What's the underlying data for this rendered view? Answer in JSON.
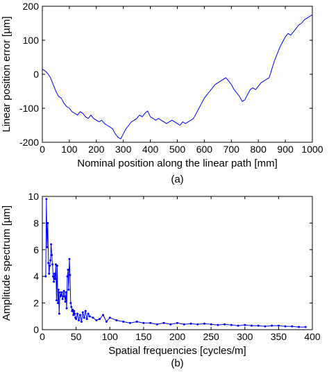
{
  "chart_data": [
    {
      "type": "line",
      "xlabel": "Nominal position along the linear path [mm]",
      "ylabel": "Linear position error [µm]",
      "caption": "(a)",
      "xlim": [
        0,
        1000
      ],
      "ylim": [
        -200,
        200
      ],
      "xticks": [
        "0",
        "100",
        "200",
        "300",
        "400",
        "500",
        "600",
        "700",
        "800",
        "900",
        "1000"
      ],
      "yticks": [
        "-200",
        "-100",
        "0",
        "100",
        "200"
      ],
      "grid": false,
      "series": [
        {
          "color": "#0000ff",
          "x": [
            0,
            10,
            20,
            30,
            40,
            50,
            60,
            70,
            80,
            90,
            100,
            110,
            120,
            130,
            140,
            150,
            160,
            170,
            180,
            190,
            200,
            210,
            220,
            230,
            240,
            250,
            260,
            270,
            280,
            290,
            300,
            310,
            320,
            330,
            340,
            350,
            360,
            370,
            380,
            390,
            400,
            410,
            420,
            430,
            440,
            450,
            460,
            470,
            480,
            490,
            500,
            510,
            520,
            530,
            540,
            550,
            560,
            570,
            580,
            590,
            600,
            610,
            620,
            630,
            640,
            650,
            660,
            670,
            680,
            690,
            700,
            710,
            720,
            730,
            740,
            750,
            760,
            770,
            780,
            790,
            800,
            810,
            820,
            830,
            840,
            850,
            860,
            870,
            880,
            890,
            900,
            910,
            920,
            930,
            940,
            950,
            960,
            970,
            980,
            990,
            1000
          ],
          "y": [
            15,
            10,
            2,
            -10,
            -30,
            -50,
            -65,
            -70,
            -85,
            -95,
            -100,
            -110,
            -115,
            -120,
            -110,
            -115,
            -125,
            -130,
            -120,
            -130,
            -135,
            -140,
            -135,
            -145,
            -150,
            -155,
            -160,
            -175,
            -185,
            -190,
            -175,
            -160,
            -150,
            -140,
            -135,
            -130,
            -120,
            -125,
            -115,
            -108,
            -125,
            -130,
            -135,
            -130,
            -135,
            -140,
            -145,
            -140,
            -135,
            -140,
            -145,
            -150,
            -140,
            -145,
            -140,
            -135,
            -130,
            -115,
            -100,
            -85,
            -70,
            -60,
            -50,
            -40,
            -30,
            -25,
            -20,
            -15,
            -10,
            -20,
            -30,
            -45,
            -55,
            -65,
            -80,
            -75,
            -60,
            -45,
            -40,
            -45,
            -35,
            -25,
            -20,
            -15,
            -10,
            15,
            40,
            60,
            80,
            95,
            110,
            120,
            115,
            125,
            135,
            145,
            150,
            160,
            165,
            170,
            175
          ]
        }
      ]
    },
    {
      "type": "line",
      "xlabel": "Spatial frequencies [cycles/m]",
      "ylabel": "Amplitude spectrum [µm]",
      "caption": "(b)",
      "xlim": [
        0,
        400
      ],
      "ylim": [
        0,
        10
      ],
      "xticks": [
        "0",
        "50",
        "100",
        "150",
        "200",
        "250",
        "300",
        "350",
        "400"
      ],
      "yticks": [
        "0",
        "2",
        "4",
        "6",
        "8",
        "10"
      ],
      "grid": false,
      "series": [
        {
          "color": "#0000ff",
          "marker": "dot",
          "x": [
            5,
            6,
            7,
            8,
            9,
            10,
            11,
            12,
            13,
            14,
            15,
            16,
            17,
            18,
            19,
            20,
            21,
            22,
            23,
            24,
            25,
            26,
            27,
            28,
            29,
            30,
            31,
            32,
            33,
            34,
            35,
            36,
            37,
            38,
            39,
            40,
            41,
            42,
            43,
            44,
            45,
            46,
            47,
            48,
            49,
            50,
            52,
            54,
            56,
            58,
            60,
            62,
            64,
            66,
            68,
            70,
            75,
            80,
            85,
            90,
            95,
            100,
            110,
            120,
            130,
            140,
            150,
            160,
            170,
            180,
            190,
            200,
            210,
            220,
            230,
            240,
            250,
            260,
            270,
            280,
            290,
            300,
            310,
            320,
            330,
            340,
            350,
            360,
            370,
            380,
            390
          ],
          "y": [
            4,
            9.8,
            6.2,
            8.0,
            5.0,
            4.2,
            4.8,
            5.2,
            6.4,
            5.6,
            4.9,
            4.0,
            3.6,
            4.2,
            3.8,
            4.9,
            2.2,
            4.8,
            2.0,
            3.0,
            1.2,
            2.8,
            2.5,
            2.6,
            2.8,
            2.3,
            2.5,
            2.9,
            2.5,
            2.1,
            2.8,
            1.6,
            4.0,
            4.5,
            3.0,
            5.3,
            4.1,
            2.0,
            1.7,
            1.4,
            1.5,
            1.1,
            1.4,
            1.2,
            0.9,
            0.8,
            1.2,
            0.7,
            1.1,
            0.6,
            1.3,
            0.9,
            1.4,
            0.8,
            1.2,
            1.0,
            0.9,
            0.7,
            0.8,
            1.1,
            0.6,
            0.9,
            0.7,
            0.6,
            0.5,
            0.6,
            0.5,
            0.5,
            0.4,
            0.5,
            0.4,
            0.5,
            0.4,
            0.45,
            0.4,
            0.45,
            0.4,
            0.35,
            0.4,
            0.35,
            0.3,
            0.35,
            0.3,
            0.3,
            0.25,
            0.3,
            0.3,
            0.25,
            0.25,
            0.2,
            0.2
          ]
        }
      ]
    }
  ]
}
